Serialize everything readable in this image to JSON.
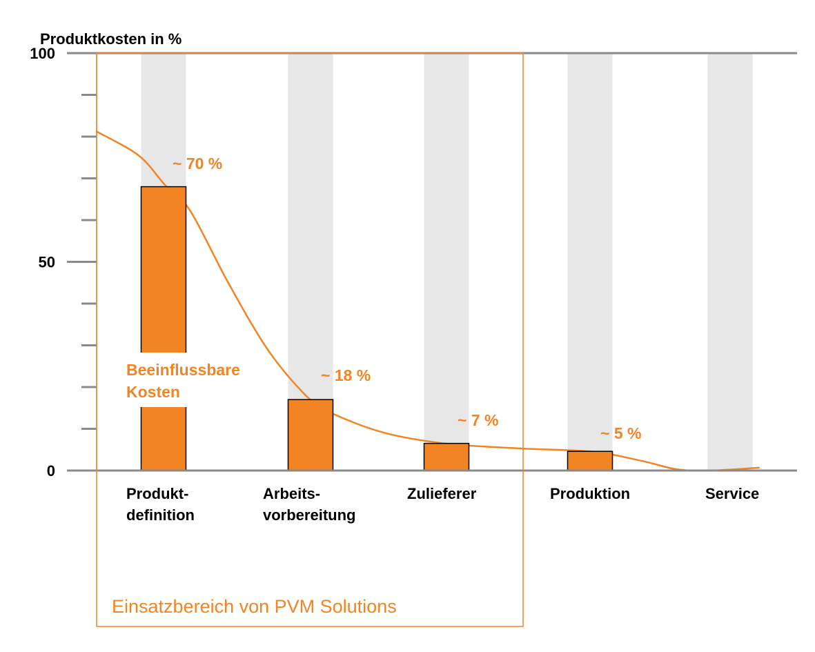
{
  "chart_data": {
    "type": "bar",
    "ylabel": "Produktkosten in %",
    "ylim": [
      0,
      100
    ],
    "yticks": [
      0,
      50,
      100
    ],
    "ytick_labels": [
      "0",
      "50",
      "100"
    ],
    "minor_ticks": [
      10,
      20,
      30,
      40,
      60,
      70,
      80,
      90
    ],
    "categories": [
      [
        "Produkt-",
        "definition"
      ],
      [
        "Arbeits-",
        "vorbereitung"
      ],
      [
        "Zulieferer"
      ],
      [
        "Produktion"
      ],
      [
        "Service"
      ]
    ],
    "values": [
      68,
      17,
      6.5,
      4.6,
      0
    ],
    "data_labels": [
      "~ 70 %",
      "~ 18 %",
      "~ 7 %",
      "~ 5 %",
      ""
    ],
    "curve": {
      "label": [
        "Beeinflussbare",
        "Kosten"
      ],
      "points": [
        [
          -0.46,
          81.3
        ],
        [
          -0.17,
          75.5
        ],
        [
          0.01,
          68.4
        ],
        [
          0.18,
          62.3
        ],
        [
          0.44,
          45
        ],
        [
          0.72,
          28.4
        ],
        [
          1.0,
          16.9
        ],
        [
          1.2,
          13.1
        ],
        [
          1.56,
          8.9
        ],
        [
          2.01,
          6.4
        ],
        [
          2.51,
          5.3
        ],
        [
          3.02,
          4.5
        ],
        [
          3.37,
          2.3
        ],
        [
          3.62,
          0.3
        ],
        [
          3.86,
          0
        ],
        [
          4.21,
          0.7
        ]
      ]
    },
    "highlight_region": {
      "label": "Einsatzbereich von PVM Solutions",
      "categories": [
        "Produkt-definition",
        "Arbeits-vorbereitung",
        "Zulieferer"
      ]
    },
    "colors": {
      "bar": "#f38423",
      "column_bg": "#e7e7e7",
      "axis": "#8a8a8a",
      "accent": "#f38423"
    },
    "grid": false
  }
}
